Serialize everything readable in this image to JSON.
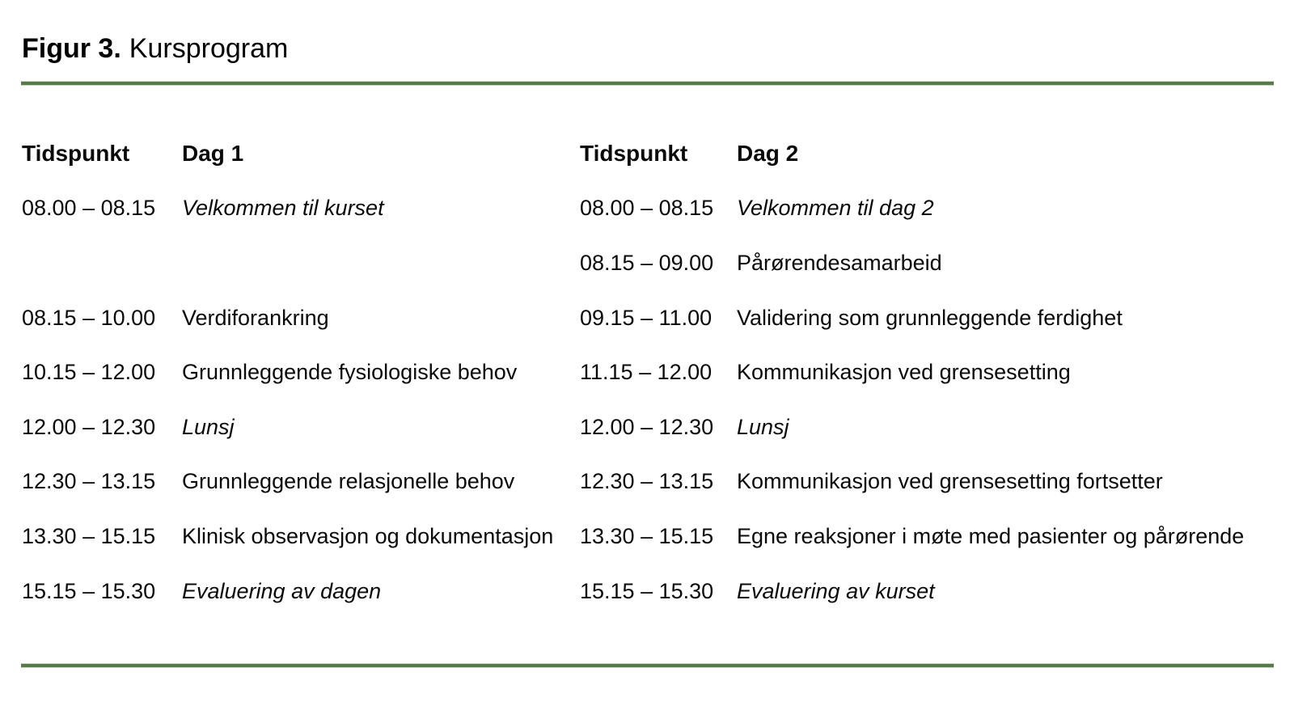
{
  "figure": {
    "label": "Figur 3.",
    "title": "Kursprogram"
  },
  "colors": {
    "divider_green": "#567a4b",
    "text": "#000000",
    "background": "#ffffff"
  },
  "schedule": {
    "header": {
      "time_day1": "Tidspunkt",
      "day1": "Dag 1",
      "time_day2": "Tidspunkt",
      "day2": "Dag 2"
    },
    "day1": {
      "rows": [
        {
          "time": "08.00 – 08.15",
          "activity": "Velkommen til kurset",
          "italic": true
        },
        {
          "time": "",
          "activity": "",
          "italic": false
        },
        {
          "time": "08.15 – 10.00",
          "activity": "Verdiforankring",
          "italic": false
        },
        {
          "time": "10.15 – 12.00",
          "activity": "Grunnleggende fysiologiske behov",
          "italic": false
        },
        {
          "time": "12.00 – 12.30",
          "activity": "Lunsj",
          "italic": true
        },
        {
          "time": "12.30 – 13.15",
          "activity": "Grunnleggende relasjonelle behov",
          "italic": false
        },
        {
          "time": "13.30 – 15.15",
          "activity": "Klinisk observasjon og dokumentasjon",
          "italic": false
        },
        {
          "time": "15.15 – 15.30",
          "activity": "Evaluering av dagen",
          "italic": true
        }
      ]
    },
    "day2": {
      "rows": [
        {
          "time": "08.00 – 08.15",
          "activity": "Velkommen til dag 2",
          "italic": true
        },
        {
          "time": "08.15 – 09.00",
          "activity": "Pårørendesamarbeid",
          "italic": false
        },
        {
          "time": "09.15 – 11.00",
          "activity": "Validering som grunnleggende ferdighet",
          "italic": false
        },
        {
          "time": "11.15 – 12.00",
          "activity": "Kommunikasjon ved grensesetting",
          "italic": false
        },
        {
          "time": "12.00 – 12.30",
          "activity": "Lunsj",
          "italic": true
        },
        {
          "time": "12.30 – 13.15",
          "activity": "Kommunikasjon ved grensesetting fortsetter",
          "italic": false
        },
        {
          "time": "13.30 – 15.15",
          "activity": "Egne reaksjoner i møte med pasienter og pårørende",
          "italic": false
        },
        {
          "time": "15.15 – 15.30",
          "activity": "Evaluering av kurset",
          "italic": true
        }
      ]
    }
  }
}
